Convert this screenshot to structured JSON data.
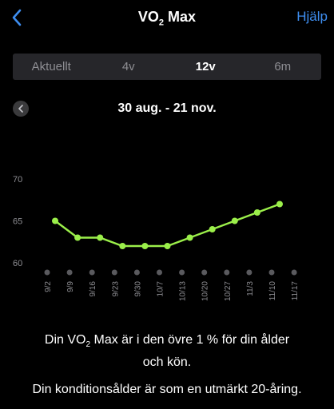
{
  "nav": {
    "back_icon": "chevron-left-icon",
    "title_prefix": "VO",
    "title_sub": "2",
    "title_suffix": " Max",
    "help_label": "Hjälp",
    "accent_color": "#3e8ef0"
  },
  "tabs": [
    {
      "label": "Aktuellt",
      "active": false
    },
    {
      "label": "4v",
      "active": false
    },
    {
      "label": "12v",
      "active": true
    },
    {
      "label": "6m",
      "active": false
    }
  ],
  "range": {
    "prev_icon": "chevron-left-icon",
    "label": "30 aug. - 21 nov."
  },
  "chart_data": {
    "type": "line",
    "categories": [
      "9/2",
      "9/9",
      "9/16",
      "9/23",
      "9/30",
      "10/7",
      "10/13",
      "10/20",
      "10/27",
      "11/3",
      "11/10",
      "11/17"
    ],
    "values": [
      65,
      63,
      63,
      62,
      62,
      62,
      63,
      64,
      65,
      66,
      67,
      null
    ],
    "ylim": [
      60,
      70
    ],
    "yticks": [
      60,
      65,
      70
    ],
    "line_color": "#9bef4a",
    "grid": false
  },
  "message": {
    "line1_prefix": "Din VO",
    "line1_sub": "2",
    "line1_suffix": " Max är i den övre 1 % för din ålder",
    "line2": "och kön.",
    "fitness_age": "Din konditionsålder är som en utmärkt 20-åring."
  }
}
